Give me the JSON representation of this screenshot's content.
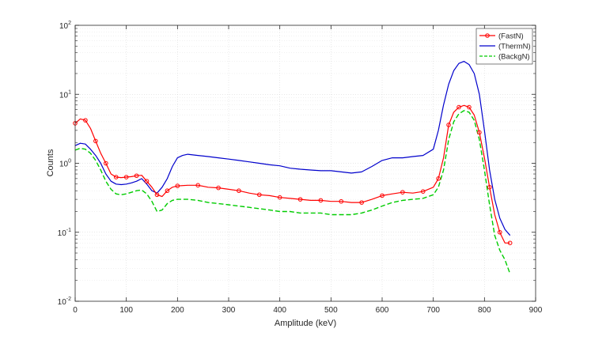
{
  "chart_data": {
    "type": "line",
    "title": "",
    "xlabel": "Amplitude (keV)",
    "ylabel": "Counts",
    "xlim": [
      0,
      900
    ],
    "ylim": [
      0.01,
      100
    ],
    "yscale": "log",
    "grid": true,
    "legend": "top-right",
    "x_ticks": [
      "0",
      "100",
      "200",
      "300",
      "400",
      "500",
      "600",
      "700",
      "800",
      "900"
    ],
    "y_ticks": [
      {
        "base": "10",
        "exp": "-2"
      },
      {
        "base": "10",
        "exp": "-1"
      },
      {
        "base": "10",
        "exp": "0"
      },
      {
        "base": "10",
        "exp": "1"
      },
      {
        "base": "10",
        "exp": "2"
      }
    ],
    "series": [
      {
        "name": "(FastN)",
        "color": "#ff0000",
        "style": "solid-circles",
        "x": [
          0,
          10,
          20,
          30,
          40,
          50,
          60,
          70,
          80,
          90,
          100,
          110,
          120,
          130,
          140,
          150,
          160,
          170,
          180,
          190,
          200,
          220,
          240,
          260,
          280,
          300,
          320,
          340,
          360,
          380,
          400,
          420,
          440,
          460,
          480,
          500,
          520,
          540,
          560,
          580,
          600,
          620,
          640,
          660,
          680,
          700,
          710,
          720,
          730,
          740,
          750,
          760,
          770,
          780,
          790,
          800,
          810,
          820,
          830,
          840,
          850
        ],
        "y": [
          3.8,
          4.4,
          4.2,
          3.2,
          2.1,
          1.4,
          1.0,
          0.7,
          0.63,
          0.62,
          0.63,
          0.64,
          0.66,
          0.67,
          0.55,
          0.45,
          0.35,
          0.33,
          0.4,
          0.45,
          0.47,
          0.48,
          0.48,
          0.45,
          0.44,
          0.42,
          0.4,
          0.37,
          0.35,
          0.34,
          0.32,
          0.31,
          0.3,
          0.29,
          0.29,
          0.28,
          0.28,
          0.27,
          0.27,
          0.3,
          0.34,
          0.36,
          0.38,
          0.37,
          0.39,
          0.45,
          0.6,
          1.2,
          3.6,
          5.5,
          6.5,
          6.9,
          6.5,
          5.0,
          2.8,
          1.2,
          0.45,
          0.18,
          0.1,
          0.07,
          0.07
        ]
      },
      {
        "name": "(ThermN)",
        "color": "#0000cc",
        "style": "solid",
        "x": [
          0,
          10,
          20,
          30,
          40,
          50,
          60,
          70,
          80,
          90,
          100,
          110,
          120,
          130,
          140,
          150,
          160,
          170,
          180,
          190,
          200,
          210,
          220,
          240,
          260,
          280,
          300,
          320,
          340,
          360,
          380,
          400,
          420,
          440,
          460,
          480,
          500,
          520,
          540,
          560,
          580,
          600,
          620,
          640,
          660,
          680,
          700,
          710,
          720,
          730,
          740,
          750,
          760,
          770,
          780,
          790,
          800,
          810,
          820,
          830,
          840,
          850
        ],
        "y": [
          1.8,
          1.95,
          1.9,
          1.6,
          1.3,
          1.0,
          0.7,
          0.55,
          0.5,
          0.49,
          0.5,
          0.52,
          0.55,
          0.6,
          0.5,
          0.4,
          0.37,
          0.45,
          0.6,
          0.9,
          1.2,
          1.3,
          1.35,
          1.3,
          1.25,
          1.2,
          1.15,
          1.1,
          1.05,
          1.0,
          0.95,
          0.92,
          0.85,
          0.82,
          0.8,
          0.78,
          0.78,
          0.75,
          0.72,
          0.75,
          0.9,
          1.1,
          1.2,
          1.2,
          1.25,
          1.3,
          1.6,
          3.0,
          7.0,
          14.0,
          22.0,
          28.0,
          30.0,
          27.0,
          20.0,
          10.0,
          3.0,
          0.8,
          0.3,
          0.16,
          0.11,
          0.09
        ]
      },
      {
        "name": "(BackgN)",
        "color": "#00cc00",
        "style": "dashed",
        "x": [
          0,
          10,
          20,
          30,
          40,
          50,
          60,
          70,
          80,
          90,
          100,
          110,
          120,
          130,
          140,
          150,
          160,
          170,
          180,
          190,
          200,
          220,
          240,
          260,
          280,
          300,
          320,
          340,
          360,
          380,
          400,
          420,
          440,
          460,
          480,
          500,
          520,
          540,
          560,
          580,
          600,
          620,
          640,
          660,
          680,
          700,
          710,
          720,
          730,
          740,
          750,
          760,
          770,
          780,
          790,
          800,
          810,
          820,
          830,
          840,
          850
        ],
        "y": [
          1.55,
          1.65,
          1.6,
          1.4,
          1.1,
          0.8,
          0.55,
          0.42,
          0.36,
          0.35,
          0.36,
          0.38,
          0.4,
          0.41,
          0.36,
          0.28,
          0.2,
          0.21,
          0.26,
          0.29,
          0.3,
          0.3,
          0.29,
          0.27,
          0.26,
          0.25,
          0.24,
          0.23,
          0.22,
          0.21,
          0.2,
          0.2,
          0.19,
          0.19,
          0.19,
          0.18,
          0.18,
          0.18,
          0.19,
          0.21,
          0.24,
          0.27,
          0.29,
          0.3,
          0.31,
          0.35,
          0.45,
          0.8,
          2.2,
          4.0,
          5.2,
          5.8,
          5.5,
          4.2,
          2.2,
          0.8,
          0.25,
          0.09,
          0.055,
          0.04,
          0.025
        ]
      }
    ]
  }
}
